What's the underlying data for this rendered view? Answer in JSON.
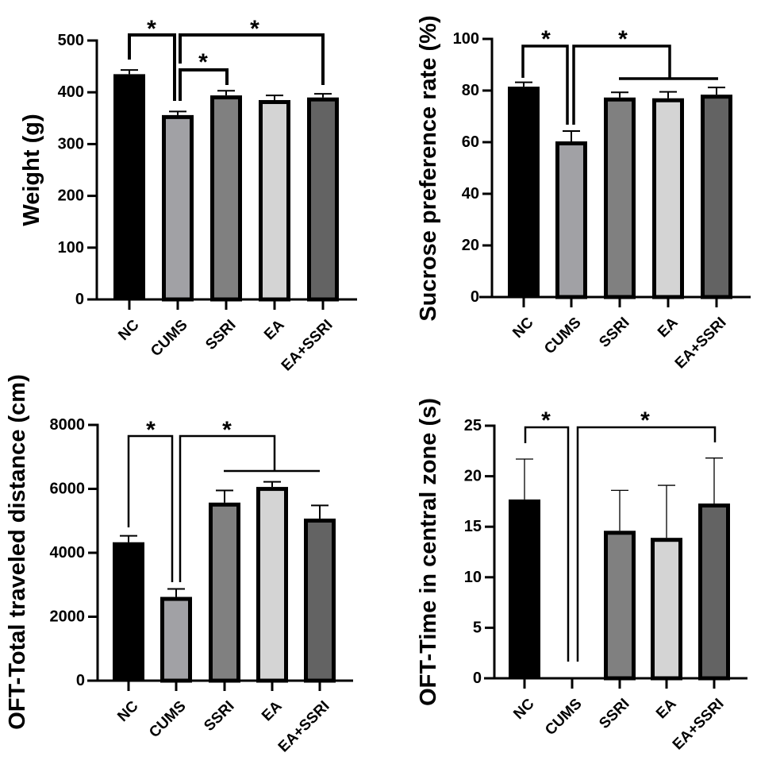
{
  "figure": {
    "colors": {
      "NC": "#000000",
      "CUMS": "#a1a1a5",
      "SSRI": "#808080",
      "EA": "#d4d4d4",
      "EA+SSRI": "#636363",
      "outline": "#000000"
    }
  },
  "chart_data": [
    {
      "id": "weight",
      "type": "bar",
      "title": "",
      "xlabel": "",
      "ylabel": "Weight (g)",
      "categories": [
        "NC",
        "CUMS",
        "SSRI",
        "EA",
        "EA+SSRI"
      ],
      "values": [
        435,
        356,
        394,
        385,
        390
      ],
      "error_upper": [
        443,
        363,
        403,
        394,
        397
      ],
      "ylim": [
        0,
        500
      ],
      "yticks": [
        0,
        100,
        200,
        300,
        400,
        500
      ],
      "ytick_labels": [
        "0",
        "100",
        "200",
        "300",
        "400",
        "500"
      ],
      "grid": false,
      "significance": [
        {
          "from": "NC",
          "to": "CUMS",
          "label": "*"
        },
        {
          "from": "CUMS",
          "to": "EA+SSRI",
          "label": "*"
        },
        {
          "from": "CUMS",
          "to": "SSRI",
          "label": "*"
        }
      ]
    },
    {
      "id": "sucrose",
      "type": "bar",
      "title": "",
      "xlabel": "",
      "ylabel": "Sucrose preference rate (%)",
      "categories": [
        "NC",
        "CUMS",
        "SSRI",
        "EA",
        "EA+SSRI"
      ],
      "values": [
        81.5,
        60.3,
        77.3,
        77.0,
        78.4
      ],
      "error_upper": [
        83.2,
        64.3,
        79.3,
        79.5,
        81.2
      ],
      "ylim": [
        0,
        100
      ],
      "yticks": [
        0,
        20,
        40,
        60,
        80,
        100
      ],
      "ytick_labels": [
        "0",
        "20",
        "40",
        "60",
        "80",
        "100"
      ],
      "grid": false,
      "significance": [
        {
          "from": "NC",
          "to": "CUMS",
          "label": "*"
        },
        {
          "from": "CUMS",
          "to": "SSRI, EA, EA+SSRI (group)",
          "label": "*"
        }
      ]
    },
    {
      "id": "oft-distance",
      "type": "bar",
      "title": "",
      "xlabel": "",
      "ylabel": "OFT-Total traveled distance (cm)",
      "categories": [
        "NC",
        "CUMS",
        "SSRI",
        "EA",
        "EA+SSRI"
      ],
      "values": [
        4330,
        2620,
        5570,
        6060,
        5070
      ],
      "error_upper": [
        4530,
        2870,
        5950,
        6220,
        5480
      ],
      "ylim": [
        0,
        8000
      ],
      "yticks": [
        0,
        2000,
        4000,
        6000,
        8000
      ],
      "ytick_labels": [
        "0",
        "2000",
        "4000",
        "6000",
        "8000"
      ],
      "grid": false,
      "significance": [
        {
          "from": "NC",
          "to": "CUMS",
          "label": "*"
        },
        {
          "from": "CUMS",
          "to": "SSRI, EA, EA+SSRI (group)",
          "label": "*"
        }
      ]
    },
    {
      "id": "oft-central",
      "type": "bar",
      "title": "",
      "xlabel": "",
      "ylabel": "OFT-Time in central zone (s)",
      "categories": [
        "NC",
        "CUMS",
        "SSRI",
        "EA",
        "EA+SSRI"
      ],
      "values": [
        17.7,
        0,
        14.6,
        13.9,
        17.3
      ],
      "error_upper": [
        21.7,
        0,
        18.6,
        19.1,
        21.8
      ],
      "ylim": [
        0,
        25
      ],
      "yticks": [
        0,
        5,
        10,
        15,
        20,
        25
      ],
      "ytick_labels": [
        "0",
        "5",
        "10",
        "15",
        "20",
        "25"
      ],
      "grid": false,
      "significance": [
        {
          "from": "NC",
          "to": "CUMS",
          "label": "*"
        },
        {
          "from": "CUMS",
          "to": "EA+SSRI",
          "label": "*"
        }
      ]
    }
  ]
}
